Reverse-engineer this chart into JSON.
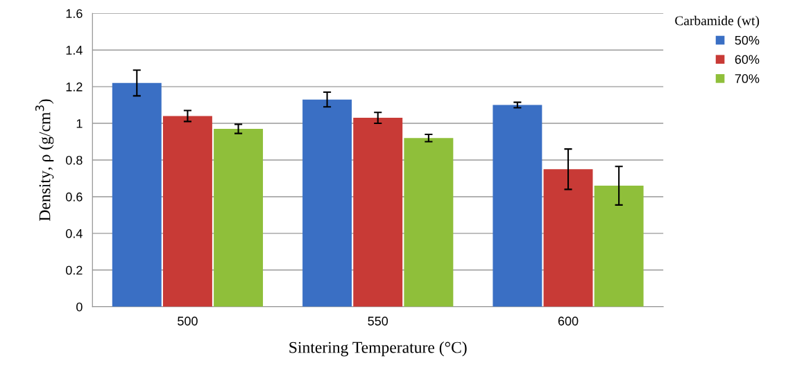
{
  "chart_data": {
    "type": "bar",
    "xlabel": "Sintering Temperature (°C)",
    "ylabel": "Density, ρ (g/cm$^{3}$)",
    "legend_title": "Carbamide (wt)",
    "categories": [
      "500",
      "550",
      "600"
    ],
    "series": [
      {
        "name": "50%",
        "color": "#3a6fc4",
        "values": [
          1.22,
          1.13,
          1.1
        ],
        "errors": [
          0.07,
          0.04,
          0.015
        ]
      },
      {
        "name": "60%",
        "color": "#c83a36",
        "values": [
          1.04,
          1.03,
          0.75
        ],
        "errors": [
          0.03,
          0.03,
          0.11
        ]
      },
      {
        "name": "70%",
        "color": "#8fbf3a",
        "values": [
          0.97,
          0.92,
          0.66
        ],
        "errors": [
          0.025,
          0.02,
          0.105
        ]
      }
    ],
    "ylim": [
      0,
      1.6
    ],
    "yticks": [
      0,
      0.2,
      0.4,
      0.6,
      0.8,
      1,
      1.2,
      1.4,
      1.6
    ],
    "grid": "y",
    "legend": "right"
  }
}
